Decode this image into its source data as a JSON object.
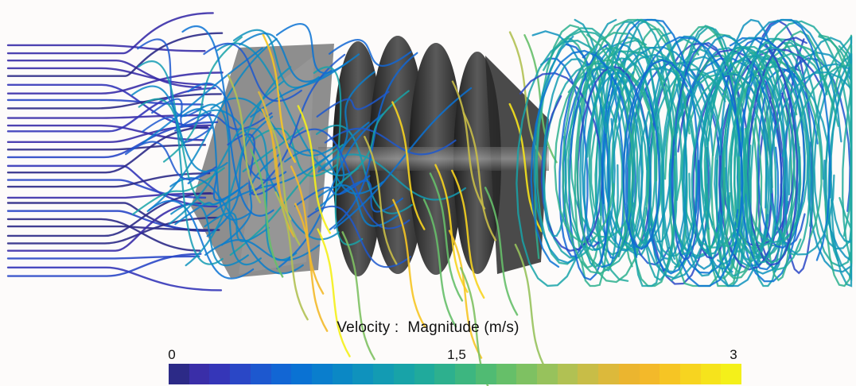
{
  "legend": {
    "title": "Velocity :  Magnitude (m/s)",
    "ticks": [
      "0",
      "1,5",
      "3"
    ],
    "colormap": [
      "#2c2a87",
      "#3a2ea8",
      "#3536b8",
      "#2a47c6",
      "#1d58cf",
      "#1266d4",
      "#0a72d3",
      "#0a7ecd",
      "#0b88c5",
      "#0f92bd",
      "#139bb3",
      "#18a3a8",
      "#20aa9c",
      "#2db08e",
      "#3db680",
      "#50bb73",
      "#66bf69",
      "#7ec162",
      "#97c25c",
      "#b1c153",
      "#c8bd47",
      "#dcb93b",
      "#ebb52f",
      "#f3b92a",
      "#f6c524",
      "#f7d420",
      "#f6e31c",
      "#f4f01a"
    ]
  }
}
